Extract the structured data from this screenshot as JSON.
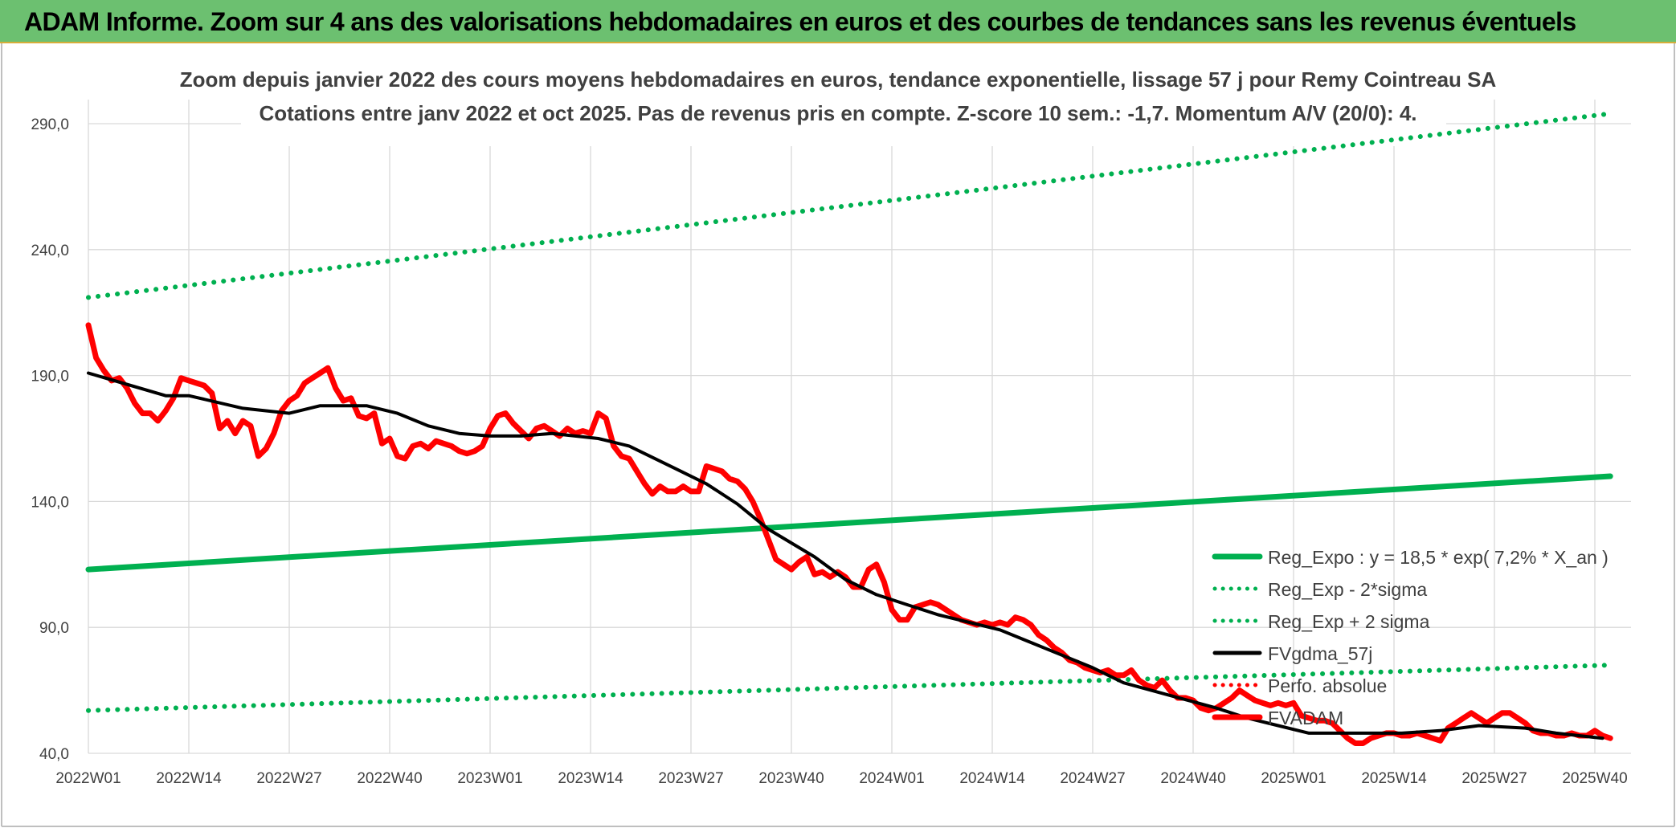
{
  "banner": {
    "title": "ADAM Informe. Zoom sur 4 ans des valorisations hebdomadaires en euros et des courbes de tendances sans les revenus éventuels",
    "background": "#6cc070"
  },
  "chart_data": {
    "type": "line",
    "title": "Zoom depuis janvier 2022 des cours moyens hebdomadaires en euros, tendance exponentielle, lissage 57 j pour Remy Cointreau SA",
    "subtitle": "Cotations entre janv 2022 et oct 2025. Pas de revenus pris en compte. Z-score 10 sem.: -1,7. Momentum A/V (20/0): 4.",
    "xlabel": "",
    "ylabel": "",
    "ylim": [
      40,
      290
    ],
    "y_ticks": [
      "40,0",
      "90,0",
      "140,0",
      "190,0",
      "240,0",
      "290,0"
    ],
    "x_categories": [
      "2022W01",
      "2022W14",
      "2022W27",
      "2022W40",
      "2023W01",
      "2023W14",
      "2023W27",
      "2023W40",
      "2024W01",
      "2024W14",
      "2024W27",
      "2024W40",
      "2025W01",
      "2025W14",
      "2025W27",
      "2025W40"
    ],
    "weeks_between_ticks": 13,
    "total_weeks": 198,
    "grid": true,
    "legend_position": "right",
    "series": [
      {
        "name": "Reg_Expo : y = 18,5 * exp( 7,2% *  X_an )",
        "style": "solid",
        "color": "#00b050",
        "x": [
          0,
          197
        ],
        "values": [
          113,
          150
        ]
      },
      {
        "name": "Reg_Exp - 2*sigma",
        "style": "dotted",
        "color": "#00b050",
        "x": [
          0,
          197
        ],
        "values": [
          57,
          75
        ]
      },
      {
        "name": "Reg_Exp + 2 sigma",
        "style": "dotted",
        "color": "#00b050",
        "x": [
          0,
          197
        ],
        "values": [
          221,
          294
        ]
      },
      {
        "name": "FVgdma_57j",
        "style": "solid",
        "color": "#000000",
        "x": [
          0,
          10,
          13,
          20,
          26,
          30,
          36,
          40,
          44,
          48,
          52,
          56,
          60,
          66,
          70,
          76,
          80,
          84,
          88,
          94,
          98,
          102,
          106,
          110,
          114,
          118,
          122,
          126,
          130,
          134,
          140,
          146,
          150,
          154,
          158,
          162,
          166,
          170,
          175,
          180,
          186,
          190,
          196
        ],
        "values": [
          191,
          182,
          182,
          177,
          175,
          178,
          178,
          175,
          170,
          167,
          166,
          166,
          167,
          165,
          162,
          153,
          147,
          139,
          129,
          118,
          109,
          103,
          99,
          95,
          92,
          89,
          84,
          79,
          74,
          68,
          63,
          58,
          54,
          51,
          48,
          48,
          48,
          48,
          49,
          51,
          50,
          48,
          46
        ]
      },
      {
        "name": "Perfo. absolue",
        "style": "dotted",
        "color": "#ff0000",
        "x": [],
        "values": []
      },
      {
        "name": "FVADAM",
        "style": "solid",
        "color": "#ff0000",
        "x": [
          0,
          1,
          2,
          3,
          4,
          5,
          6,
          7,
          8,
          9,
          10,
          11,
          12,
          13,
          14,
          15,
          16,
          17,
          18,
          19,
          20,
          21,
          22,
          23,
          24,
          25,
          26,
          27,
          28,
          29,
          30,
          31,
          32,
          33,
          34,
          35,
          36,
          37,
          38,
          39,
          40,
          41,
          42,
          43,
          44,
          45,
          46,
          47,
          48,
          49,
          50,
          51,
          52,
          53,
          54,
          55,
          56,
          57,
          58,
          59,
          60,
          61,
          62,
          63,
          64,
          65,
          66,
          67,
          68,
          69,
          70,
          71,
          72,
          73,
          74,
          75,
          76,
          77,
          78,
          79,
          80,
          81,
          82,
          83,
          84,
          85,
          86,
          87,
          88,
          89,
          90,
          91,
          92,
          93,
          94,
          95,
          96,
          97,
          98,
          99,
          100,
          101,
          102,
          103,
          104,
          105,
          106,
          107,
          108,
          109,
          110,
          111,
          112,
          113,
          114,
          115,
          116,
          117,
          118,
          119,
          120,
          121,
          122,
          123,
          124,
          125,
          126,
          127,
          128,
          129,
          130,
          131,
          132,
          133,
          134,
          135,
          136,
          137,
          138,
          139,
          140,
          141,
          142,
          143,
          144,
          145,
          146,
          147,
          148,
          149,
          150,
          151,
          152,
          153,
          154,
          155,
          156,
          157,
          158,
          159,
          160,
          161,
          162,
          163,
          164,
          165,
          166,
          167,
          168,
          169,
          170,
          171,
          172,
          173,
          174,
          175,
          176,
          177,
          178,
          179,
          180,
          181,
          182,
          183,
          184,
          185,
          186,
          187,
          188,
          189,
          190,
          191,
          192,
          193,
          194,
          195,
          196,
          197
        ],
        "values": [
          210,
          197,
          192,
          188,
          189,
          185,
          179,
          175,
          175,
          172,
          176,
          181,
          189,
          188,
          187,
          186,
          183,
          169,
          172,
          167,
          172,
          170,
          158,
          161,
          167,
          176,
          180,
          182,
          187,
          189,
          191,
          193,
          185,
          180,
          181,
          174,
          173,
          175,
          163,
          165,
          158,
          157,
          162,
          163,
          161,
          164,
          163,
          162,
          160,
          159,
          160,
          162,
          169,
          174,
          175,
          171,
          168,
          165,
          169,
          170,
          168,
          166,
          169,
          167,
          168,
          167,
          175,
          173,
          162,
          158,
          157,
          152,
          147,
          143,
          146,
          144,
          144,
          146,
          144,
          144,
          154,
          153,
          152,
          149,
          148,
          145,
          140,
          133,
          125,
          117,
          115,
          113,
          116,
          118,
          111,
          112,
          110,
          112,
          110,
          106,
          106,
          113,
          115,
          108,
          97,
          93,
          93,
          98,
          99,
          100,
          99,
          97,
          95,
          93,
          92,
          91,
          92,
          91,
          92,
          91,
          94,
          93,
          91,
          87,
          85,
          82,
          80,
          77,
          76,
          74,
          73,
          72,
          73,
          71,
          71,
          73,
          69,
          67,
          66,
          69,
          65,
          62,
          62,
          61,
          58,
          57,
          58,
          60,
          62,
          65,
          63,
          61,
          60,
          59,
          60,
          59,
          60,
          55,
          54,
          53,
          53,
          52,
          49,
          46,
          44,
          44,
          46,
          47,
          48,
          48,
          47,
          47,
          48,
          47,
          46,
          45,
          50,
          52,
          54,
          56,
          54,
          52,
          54,
          56,
          56,
          54,
          52,
          49,
          48,
          48,
          47,
          47,
          48,
          47,
          47,
          49,
          47,
          46
        ]
      }
    ]
  }
}
